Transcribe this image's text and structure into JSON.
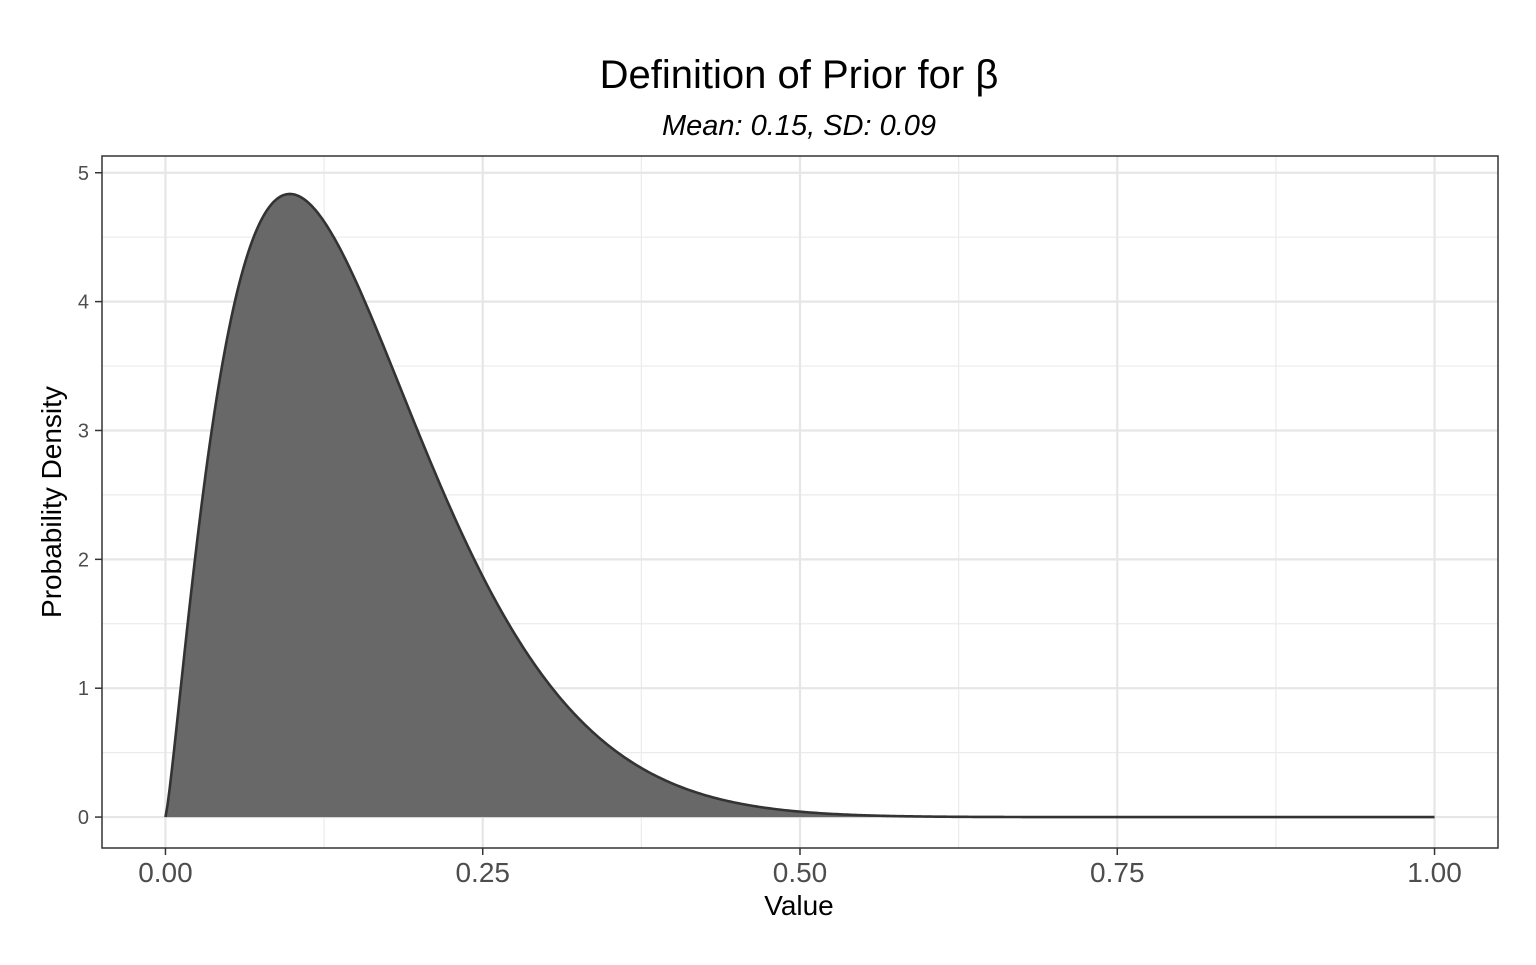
{
  "chart_data": {
    "type": "area",
    "title": "Definition of Prior for β",
    "subtitle": "Mean: 0.15, SD: 0.09",
    "xlabel": "Value",
    "ylabel": "Probability Density",
    "xlim": [
      -0.05,
      1.05
    ],
    "ylim": [
      -0.24,
      5.13
    ],
    "x_ticks": [
      0.0,
      0.25,
      0.5,
      0.75,
      1.0
    ],
    "x_tick_labels": [
      "0.00",
      "0.25",
      "0.50",
      "0.75",
      "1.00"
    ],
    "y_ticks": [
      0,
      1,
      2,
      3,
      4,
      5
    ],
    "y_tick_labels": [
      "0",
      "1",
      "2",
      "3",
      "4",
      "5"
    ],
    "grid": true,
    "legend": "none",
    "series": [
      {
        "distribution": "beta",
        "alpha": 2.25,
        "beta": 12.5,
        "fill_color": "#666666",
        "line_color": "#333333",
        "x": [
          0.0,
          0.01,
          0.02,
          0.03,
          0.04,
          0.05,
          0.06,
          0.07,
          0.08,
          0.09,
          0.1,
          0.12,
          0.14,
          0.16,
          0.18,
          0.2,
          0.22,
          0.24,
          0.26,
          0.28,
          0.3,
          0.32,
          0.34,
          0.36,
          0.38,
          0.4,
          0.42,
          0.45,
          0.5,
          0.55,
          0.6,
          0.7,
          0.8,
          0.9,
          1.0
        ],
        "y": [
          0.0,
          0.64,
          1.51,
          2.37,
          3.13,
          3.76,
          4.25,
          4.59,
          4.8,
          4.89,
          4.88,
          4.65,
          4.25,
          3.76,
          3.24,
          2.73,
          2.26,
          1.84,
          1.47,
          1.16,
          0.91,
          0.7,
          0.53,
          0.4,
          0.3,
          0.22,
          0.16,
          0.1,
          0.04,
          0.015,
          0.005,
          0.0005,
          0.0,
          0.0,
          0.0
        ]
      }
    ]
  }
}
